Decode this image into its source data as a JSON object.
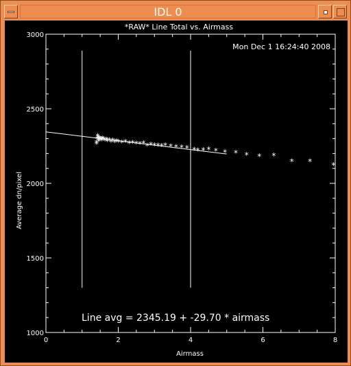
{
  "window": {
    "title": "IDL 0"
  },
  "chart_data": {
    "type": "scatter",
    "title": "*RAW* Line Total vs. Airmass",
    "timestamp": "Mon Dec  1 16:24:40 2008",
    "xlabel": "Airmass",
    "ylabel": "Average dn/pixel",
    "xlim": [
      0,
      8
    ],
    "ylim": [
      1000,
      3000
    ],
    "xticks": [
      "0",
      "2",
      "4",
      "6",
      "8"
    ],
    "yticks": [
      "1000",
      "1500",
      "2000",
      "2500",
      "3000"
    ],
    "fit_label": "Line avg = 2345.19 + -29.70 * airmass",
    "fit": {
      "intercept": 2345.19,
      "slope": -29.7,
      "x_range": [
        0,
        5
      ]
    },
    "vertical_lines": [
      1,
      4
    ],
    "points": [
      [
        1.4,
        2265
      ],
      [
        1.4,
        2275
      ],
      [
        1.42,
        2300
      ],
      [
        1.43,
        2318
      ],
      [
        1.44,
        2310
      ],
      [
        1.45,
        2293
      ],
      [
        1.46,
        2285
      ],
      [
        1.48,
        2305
      ],
      [
        1.5,
        2295
      ],
      [
        1.52,
        2300
      ],
      [
        1.55,
        2290
      ],
      [
        1.57,
        2302
      ],
      [
        1.6,
        2296
      ],
      [
        1.63,
        2288
      ],
      [
        1.67,
        2297
      ],
      [
        1.7,
        2285
      ],
      [
        1.75,
        2292
      ],
      [
        1.8,
        2280
      ],
      [
        1.85,
        2288
      ],
      [
        1.9,
        2278
      ],
      [
        1.95,
        2284
      ],
      [
        2.0,
        2279
      ],
      [
        2.1,
        2276
      ],
      [
        2.2,
        2280
      ],
      [
        2.3,
        2270
      ],
      [
        2.4,
        2274
      ],
      [
        2.5,
        2268
      ],
      [
        2.6,
        2265
      ],
      [
        2.7,
        2270
      ],
      [
        2.8,
        2255
      ],
      [
        2.9,
        2262
      ],
      [
        3.0,
        2258
      ],
      [
        3.1,
        2255
      ],
      [
        3.2,
        2252
      ],
      [
        3.3,
        2256
      ],
      [
        3.45,
        2250
      ],
      [
        3.6,
        2245
      ],
      [
        3.75,
        2243
      ],
      [
        3.9,
        2238
      ],
      [
        4.1,
        2228
      ],
      [
        4.2,
        2222
      ],
      [
        4.35,
        2225
      ],
      [
        4.5,
        2230
      ],
      [
        4.7,
        2220
      ],
      [
        4.95,
        2210
      ],
      [
        5.25,
        2206
      ],
      [
        5.55,
        2192
      ],
      [
        5.9,
        2183
      ],
      [
        6.3,
        2188
      ],
      [
        6.8,
        2148
      ],
      [
        7.3,
        2148
      ],
      [
        7.95,
        2125
      ]
    ]
  }
}
